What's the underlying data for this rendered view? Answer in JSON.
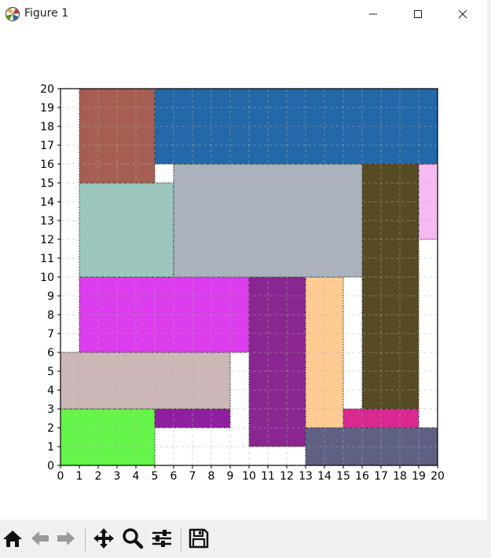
{
  "window": {
    "title": "Figure 1",
    "controls": [
      "minimize",
      "maximize",
      "close"
    ],
    "app_icon": "matplotlib-icon"
  },
  "toolbar": {
    "buttons": [
      {
        "name": "home-icon",
        "action": "Home"
      },
      {
        "name": "back-arrow-icon",
        "action": "Back"
      },
      {
        "name": "forward-arrow-icon",
        "action": "Forward"
      },
      {
        "name": "pan-icon",
        "action": "Pan"
      },
      {
        "name": "zoom-icon",
        "action": "Zoom"
      },
      {
        "name": "configure-subplots-icon",
        "action": "Configure subplots"
      },
      {
        "name": "save-icon",
        "action": "Save"
      }
    ]
  },
  "chart_data": {
    "type": "rectangle-packing",
    "title": "",
    "xlabel": "",
    "ylabel": "",
    "xlim": [
      0,
      20
    ],
    "ylim": [
      0,
      20
    ],
    "xticks": [
      "0",
      "1",
      "2",
      "3",
      "4",
      "5",
      "6",
      "7",
      "8",
      "9",
      "10",
      "11",
      "12",
      "13",
      "14",
      "15",
      "16",
      "17",
      "18",
      "19",
      "20"
    ],
    "yticks": [
      "0",
      "1",
      "2",
      "3",
      "4",
      "5",
      "6",
      "7",
      "8",
      "9",
      "10",
      "11",
      "12",
      "13",
      "14",
      "15",
      "16",
      "17",
      "18",
      "19",
      "20"
    ],
    "grid": true,
    "rectangles": [
      {
        "x": 0,
        "y": 0,
        "w": 5,
        "h": 3,
        "color": "#66f54a"
      },
      {
        "x": 5,
        "y": 2,
        "w": 4,
        "h": 1,
        "color": "#8e1f9e"
      },
      {
        "x": 0,
        "y": 3,
        "w": 9,
        "h": 3,
        "color": "#ccb7b7"
      },
      {
        "x": 1,
        "y": 6,
        "w": 9,
        "h": 4,
        "color": "#dc3ded"
      },
      {
        "x": 10,
        "y": 1,
        "w": 3,
        "h": 9,
        "color": "#8a268f"
      },
      {
        "x": 13,
        "y": 0,
        "w": 7,
        "h": 2,
        "color": "#5e6181"
      },
      {
        "x": 13,
        "y": 2,
        "w": 2,
        "h": 8,
        "color": "#fecb93"
      },
      {
        "x": 15,
        "y": 2,
        "w": 4,
        "h": 1,
        "color": "#d92892"
      },
      {
        "x": 16,
        "y": 3,
        "w": 3,
        "h": 13,
        "color": "#564b22"
      },
      {
        "x": 19,
        "y": 12,
        "w": 1,
        "h": 4,
        "color": "#f6b9f1"
      },
      {
        "x": 1,
        "y": 10,
        "w": 5,
        "h": 5,
        "color": "#9cc7bc"
      },
      {
        "x": 6,
        "y": 10,
        "w": 10,
        "h": 6,
        "color": "#a9b2bd"
      },
      {
        "x": 1,
        "y": 15,
        "w": 4,
        "h": 5,
        "color": "#a65e53"
      },
      {
        "x": 5,
        "y": 16,
        "w": 15,
        "h": 4,
        "color": "#2368a8"
      }
    ]
  }
}
